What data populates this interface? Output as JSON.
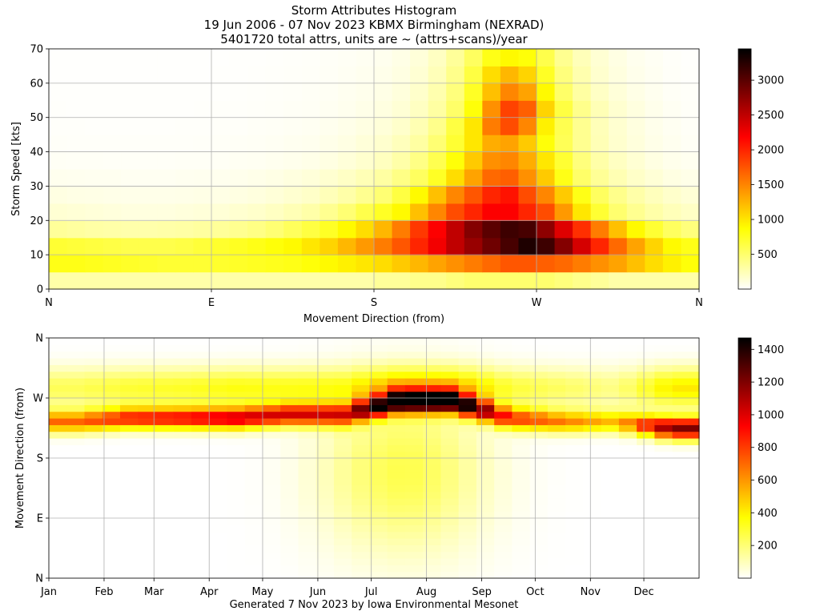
{
  "title": {
    "line1": "Storm Attributes Histogram",
    "line2": "19 Jun 2006 - 07 Nov 2023 KBMX Birmingham (NEXRAD)",
    "line3": "5401720 total attrs, units are ~ (attrs+scans)/year"
  },
  "footer": "Generated 7 Nov 2023 by Iowa Environmental Mesonet",
  "chart_data": [
    {
      "type": "heatmap",
      "xlabel": "Movement Direction (from)",
      "ylabel": "Storm Speed [kts]",
      "x_ticks": [
        "N",
        "E",
        "S",
        "W",
        "N"
      ],
      "x_range": [
        0,
        360
      ],
      "y_ticks": [
        "0",
        "10",
        "20",
        "30",
        "40",
        "50",
        "60",
        "70"
      ],
      "y_range": [
        0,
        70
      ],
      "colorbar_ticks": [
        "500",
        "1000",
        "1500",
        "2000",
        "2500",
        "3000"
      ],
      "colorbar_range": [
        0,
        3450
      ],
      "colormap": "hot_r",
      "grid": true,
      "x_bins": [
        0,
        10,
        20,
        30,
        40,
        50,
        60,
        70,
        80,
        90,
        100,
        110,
        120,
        130,
        140,
        150,
        160,
        170,
        180,
        190,
        200,
        210,
        220,
        230,
        240,
        250,
        260,
        270,
        280,
        290,
        300,
        310,
        320,
        330,
        340,
        350
      ],
      "y_bins": [
        0,
        5,
        10,
        15,
        20,
        25,
        30,
        35,
        40,
        45,
        50,
        55,
        60,
        65
      ],
      "values": [
        [
          300,
          300,
          300,
          300,
          300,
          300,
          300,
          300,
          300,
          300,
          300,
          300,
          300,
          300,
          300,
          300,
          300,
          300,
          350,
          350,
          400,
          400,
          450,
          500,
          500,
          500,
          500,
          500,
          450,
          400,
          350,
          300,
          300,
          300,
          300,
          300
        ],
        [
          800,
          800,
          780,
          760,
          740,
          720,
          700,
          700,
          700,
          720,
          740,
          760,
          780,
          800,
          850,
          900,
          950,
          1000,
          1050,
          1150,
          1250,
          1350,
          1450,
          1550,
          1650,
          1750,
          1750,
          1700,
          1650,
          1550,
          1450,
          1350,
          1200,
          1050,
          950,
          850
        ],
        [
          700,
          680,
          660,
          640,
          620,
          620,
          620,
          640,
          680,
          720,
          760,
          800,
          850,
          900,
          1000,
          1100,
          1250,
          1400,
          1550,
          1750,
          2000,
          2250,
          2500,
          2700,
          2900,
          3100,
          3300,
          3150,
          2800,
          2400,
          2000,
          1650,
          1350,
          1100,
          900,
          800
        ],
        [
          350,
          330,
          310,
          300,
          290,
          290,
          300,
          310,
          330,
          350,
          380,
          420,
          480,
          560,
          650,
          750,
          900,
          1050,
          1250,
          1550,
          1900,
          2200,
          2500,
          2800,
          3000,
          3150,
          3100,
          2750,
          2350,
          1950,
          1550,
          1200,
          900,
          700,
          550,
          450
        ],
        [
          150,
          140,
          130,
          120,
          110,
          110,
          110,
          120,
          130,
          140,
          160,
          180,
          210,
          250,
          300,
          380,
          480,
          620,
          750,
          900,
          1200,
          1500,
          1800,
          2000,
          2200,
          2200,
          2000,
          1800,
          1400,
          1000,
          700,
          500,
          380,
          300,
          240,
          200
        ],
        [
          100,
          90,
          85,
          80,
          75,
          75,
          75,
          80,
          85,
          90,
          100,
          115,
          135,
          160,
          190,
          240,
          300,
          380,
          480,
          650,
          900,
          1200,
          1500,
          1750,
          2000,
          2100,
          1800,
          1500,
          1150,
          800,
          550,
          400,
          300,
          230,
          180,
          140
        ],
        [
          60,
          55,
          50,
          50,
          45,
          45,
          45,
          50,
          55,
          60,
          65,
          75,
          90,
          110,
          130,
          160,
          200,
          250,
          320,
          420,
          550,
          750,
          1050,
          1350,
          1650,
          1700,
          1450,
          1150,
          800,
          520,
          360,
          260,
          190,
          140,
          100,
          80
        ],
        [
          35,
          30,
          30,
          28,
          28,
          28,
          28,
          30,
          32,
          35,
          40,
          45,
          55,
          65,
          80,
          100,
          130,
          170,
          220,
          300,
          420,
          600,
          850,
          1150,
          1450,
          1500,
          1300,
          1000,
          700,
          450,
          300,
          210,
          150,
          100,
          70,
          50
        ],
        [
          25,
          22,
          20,
          20,
          20,
          20,
          20,
          22,
          24,
          26,
          30,
          35,
          40,
          50,
          60,
          75,
          95,
          130,
          170,
          230,
          320,
          480,
          700,
          1000,
          1300,
          1350,
          1150,
          850,
          580,
          380,
          250,
          170,
          120,
          80,
          55,
          35
        ],
        [
          18,
          16,
          15,
          15,
          15,
          15,
          15,
          16,
          18,
          20,
          22,
          26,
          30,
          38,
          45,
          58,
          75,
          100,
          130,
          180,
          260,
          400,
          650,
          1000,
          1550,
          1800,
          1500,
          950,
          600,
          380,
          240,
          160,
          110,
          70,
          45,
          28
        ],
        [
          14,
          12,
          12,
          12,
          12,
          12,
          12,
          12,
          14,
          16,
          18,
          20,
          24,
          30,
          36,
          46,
          60,
          80,
          105,
          145,
          210,
          320,
          520,
          850,
          1450,
          1850,
          1700,
          1100,
          650,
          400,
          250,
          160,
          110,
          70,
          40,
          24
        ],
        [
          10,
          10,
          10,
          10,
          10,
          10,
          10,
          10,
          10,
          12,
          14,
          16,
          20,
          24,
          30,
          38,
          50,
          65,
          85,
          120,
          180,
          280,
          450,
          750,
          1200,
          1500,
          1350,
          900,
          520,
          320,
          200,
          130,
          85,
          55,
          32,
          20
        ],
        [
          8,
          8,
          8,
          8,
          8,
          8,
          8,
          8,
          8,
          10,
          12,
          14,
          16,
          20,
          25,
          32,
          42,
          55,
          72,
          100,
          150,
          240,
          400,
          650,
          1050,
          1250,
          1100,
          750,
          450,
          280,
          170,
          110,
          70,
          45,
          25,
          15
        ],
        [
          6,
          6,
          6,
          6,
          6,
          6,
          6,
          6,
          6,
          8,
          10,
          12,
          14,
          17,
          22,
          28,
          36,
          46,
          60,
          85,
          130,
          210,
          350,
          550,
          800,
          900,
          850,
          620,
          380,
          240,
          150,
          95,
          60,
          38,
          22,
          12
        ]
      ]
    },
    {
      "type": "heatmap",
      "xlabel": "",
      "ylabel": "Movement Direction (from)",
      "x_ticks": [
        "Jan",
        "Feb",
        "Mar",
        "Apr",
        "May",
        "Jun",
        "Jul",
        "Aug",
        "Sep",
        "Oct",
        "Nov",
        "Dec"
      ],
      "x_range": [
        1,
        366
      ],
      "y_ticks": [
        "N",
        "E",
        "S",
        "W",
        "N"
      ],
      "y_range": [
        0,
        360
      ],
      "colorbar_ticks": [
        "200",
        "400",
        "600",
        "800",
        "1000",
        "1200",
        "1400"
      ],
      "colorbar_range": [
        0,
        1470
      ],
      "colormap": "hot_r",
      "grid": true,
      "x_bins": [
        1,
        11,
        21,
        31,
        41,
        51,
        61,
        71,
        81,
        91,
        101,
        111,
        121,
        131,
        141,
        151,
        161,
        171,
        181,
        191,
        201,
        211,
        221,
        231,
        241,
        251,
        261,
        271,
        281,
        291,
        301,
        311,
        321,
        331,
        341,
        351,
        361
      ],
      "y_bins": [
        0,
        10,
        20,
        30,
        40,
        50,
        60,
        70,
        80,
        90,
        100,
        110,
        120,
        130,
        140,
        150,
        160,
        170,
        180,
        190,
        200,
        210,
        220,
        230,
        240,
        250,
        260,
        270,
        280,
        290,
        300,
        310,
        320,
        330,
        340,
        350
      ],
      "peak_month_centers": [
        16,
        46,
        75,
        106,
        136,
        167,
        197,
        228,
        259,
        289,
        320,
        350
      ],
      "peak_amplitudes": [
        700,
        850,
        900,
        1000,
        950,
        900,
        1400,
        1400,
        800,
        650,
        500,
        1200
      ],
      "peak_directions_deg": [
        235,
        240,
        240,
        240,
        245,
        245,
        265,
        265,
        240,
        235,
        235,
        225
      ]
    }
  ]
}
